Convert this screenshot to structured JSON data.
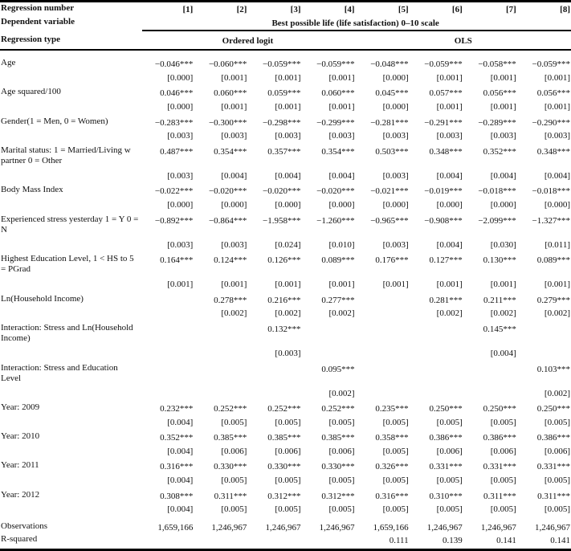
{
  "table": {
    "header": {
      "regression_number_label": "Regression number",
      "regression_numbers": [
        "[1]",
        "[2]",
        "[3]",
        "[4]",
        "[5]",
        "[6]",
        "[7]",
        "[8]"
      ],
      "dependent_variable_label": "Dependent variable",
      "dependent_variable": "Best possible life (life satisfaction) 0–10 scale",
      "regression_type_label": "Regression type",
      "regression_types": [
        {
          "label": "Ordered logit",
          "span": 4
        },
        {
          "label": "OLS",
          "span": 4
        }
      ]
    },
    "rows": [
      {
        "label": "Age",
        "coef": [
          "−0.046***",
          "−0.060***",
          "−0.059***",
          "−0.059***",
          "−0.048***",
          "−0.059***",
          "−0.058***",
          "−0.059***"
        ],
        "se": [
          "[0.000]",
          "[0.001]",
          "[0.001]",
          "[0.001]",
          "[0.000]",
          "[0.001]",
          "[0.001]",
          "[0.001]"
        ]
      },
      {
        "label": "Age squared/100",
        "coef": [
          "0.046***",
          "0.060***",
          "0.059***",
          "0.060***",
          "0.045***",
          "0.057***",
          "0.056***",
          "0.056***"
        ],
        "se": [
          "[0.000]",
          "[0.001]",
          "[0.001]",
          "[0.001]",
          "[0.000]",
          "[0.001]",
          "[0.001]",
          "[0.001]"
        ]
      },
      {
        "label": "Gender(1 = Men, 0 = Women)",
        "coef": [
          "−0.283***",
          "−0.300***",
          "−0.298***",
          "−0.299***",
          "−0.281***",
          "−0.291***",
          "−0.289***",
          "−0.290***"
        ],
        "se": [
          "[0.003]",
          "[0.003]",
          "[0.003]",
          "[0.003]",
          "[0.003]",
          "[0.003]",
          "[0.003]",
          "[0.003]"
        ]
      },
      {
        "label": "Marital status: 1 = Married/Living w partner 0 = Other",
        "coef": [
          "0.487***",
          "0.354***",
          "0.357***",
          "0.354***",
          "0.503***",
          "0.348***",
          "0.352***",
          "0.348***"
        ],
        "se": [
          "[0.003]",
          "[0.004]",
          "[0.004]",
          "[0.004]",
          "[0.003]",
          "[0.004]",
          "[0.004]",
          "[0.004]"
        ]
      },
      {
        "label": "Body Mass Index",
        "coef": [
          "−0.022***",
          "−0.020***",
          "−0.020***",
          "−0.020***",
          "−0.021***",
          "−0.019***",
          "−0.018***",
          "−0.018***"
        ],
        "se": [
          "[0.000]",
          "[0.000]",
          "[0.000]",
          "[0.000]",
          "[0.000]",
          "[0.000]",
          "[0.000]",
          "[0.000]"
        ]
      },
      {
        "label": "Experienced stress yesterday 1 = Y 0 = N",
        "coef": [
          "−0.892***",
          "−0.864***",
          "−1.958***",
          "−1.260***",
          "−0.965***",
          "−0.908***",
          "−2.099***",
          "−1.327***"
        ],
        "se": [
          "[0.003]",
          "[0.003]",
          "[0.024]",
          "[0.010]",
          "[0.003]",
          "[0.004]",
          "[0.030]",
          "[0.011]"
        ]
      },
      {
        "label": "Highest Education Level, 1 < HS to 5 = PGrad",
        "coef": [
          "0.164***",
          "0.124***",
          "0.126***",
          "0.089***",
          "0.176***",
          "0.127***",
          "0.130***",
          "0.089***"
        ],
        "se": [
          "[0.001]",
          "[0.001]",
          "[0.001]",
          "[0.001]",
          "[0.001]",
          "[0.001]",
          "[0.001]",
          "[0.001]"
        ]
      },
      {
        "label": "Ln(Household Income)",
        "coef": [
          "",
          "0.278***",
          "0.216***",
          "0.277***",
          "",
          "0.281***",
          "0.211***",
          "0.279***"
        ],
        "se": [
          "",
          "[0.002]",
          "[0.002]",
          "[0.002]",
          "",
          "[0.002]",
          "[0.002]",
          "[0.002]"
        ]
      },
      {
        "label": "Interaction: Stress and Ln(Household Income)",
        "coef": [
          "",
          "",
          "0.132***",
          "",
          "",
          "",
          "0.145***",
          ""
        ],
        "se": [
          "",
          "",
          "[0.003]",
          "",
          "",
          "",
          "[0.004]",
          ""
        ]
      },
      {
        "label": "Interaction: Stress and Education Level",
        "coef": [
          "",
          "",
          "",
          "0.095***",
          "",
          "",
          "",
          "0.103***"
        ],
        "se": [
          "",
          "",
          "",
          "[0.002]",
          "",
          "",
          "",
          "[0.002]"
        ]
      },
      {
        "label": "Year: 2009",
        "coef": [
          "0.232***",
          "0.252***",
          "0.252***",
          "0.252***",
          "0.235***",
          "0.250***",
          "0.250***",
          "0.250***"
        ],
        "se": [
          "[0.004]",
          "[0.005]",
          "[0.005]",
          "[0.005]",
          "[0.005]",
          "[0.005]",
          "[0.005]",
          "[0.005]"
        ]
      },
      {
        "label": "Year: 2010",
        "coef": [
          "0.352***",
          "0.385***",
          "0.385***",
          "0.385***",
          "0.358***",
          "0.386***",
          "0.386***",
          "0.386***"
        ],
        "se": [
          "[0.004]",
          "[0.006]",
          "[0.006]",
          "[0.006]",
          "[0.005]",
          "[0.006]",
          "[0.006]",
          "[0.006]"
        ]
      },
      {
        "label": "Year: 2011",
        "coef": [
          "0.316***",
          "0.330***",
          "0.330***",
          "0.330***",
          "0.326***",
          "0.331***",
          "0.331***",
          "0.331***"
        ],
        "se": [
          "[0.004]",
          "[0.005]",
          "[0.005]",
          "[0.005]",
          "[0.005]",
          "[0.005]",
          "[0.005]",
          "[0.005]"
        ]
      },
      {
        "label": "Year: 2012",
        "coef": [
          "0.308***",
          "0.311***",
          "0.312***",
          "0.312***",
          "0.316***",
          "0.310***",
          "0.311***",
          "0.311***"
        ],
        "se": [
          "[0.004]",
          "[0.005]",
          "[0.005]",
          "[0.005]",
          "[0.005]",
          "[0.005]",
          "[0.005]",
          "[0.005]"
        ]
      }
    ],
    "footer": [
      {
        "label": "Observations",
        "values": [
          "1,659,166",
          "1,246,967",
          "1,246,967",
          "1,246,967",
          "1,659,166",
          "1,246,967",
          "1,246,967",
          "1,246,967"
        ]
      },
      {
        "label": "R-squared",
        "values": [
          "",
          "",
          "",
          "",
          "0.111",
          "0.139",
          "0.141",
          "0.141"
        ]
      }
    ]
  }
}
